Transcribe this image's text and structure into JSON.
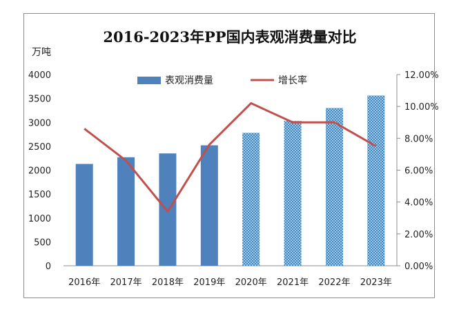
{
  "chart_data": {
    "type": "bar",
    "title": "2016-2023年PP国内表观消费量对比",
    "y_unit_label": "万吨",
    "categories": [
      "2016年",
      "2017年",
      "2018年",
      "2019年",
      "2020年",
      "2021年",
      "2022年",
      "2023年"
    ],
    "ylim_left": [
      0,
      4000
    ],
    "yticks_left": [
      "0",
      "500",
      "1000",
      "1500",
      "2000",
      "2500",
      "3000",
      "3500",
      "4000"
    ],
    "ylim_right": [
      0,
      0.12
    ],
    "yticks_right": [
      "0.00%",
      "2.00%",
      "4.00%",
      "6.00%",
      "8.00%",
      "10.00%",
      "12.00%"
    ],
    "series": [
      {
        "name": "表观消费量",
        "type": "bar",
        "color": "#4f81bd",
        "values": [
          2130,
          2270,
          2350,
          2520,
          2780,
          3030,
          3300,
          3560
        ],
        "forecast_pattern_from_index": 4
      },
      {
        "name": "增长率",
        "type": "line",
        "color": "#c0504d",
        "axis": "right",
        "values": [
          0.086,
          0.066,
          0.034,
          0.076,
          0.102,
          0.09,
          0.09,
          0.075
        ]
      }
    ],
    "legend_position": "top-center",
    "grid": false
  }
}
